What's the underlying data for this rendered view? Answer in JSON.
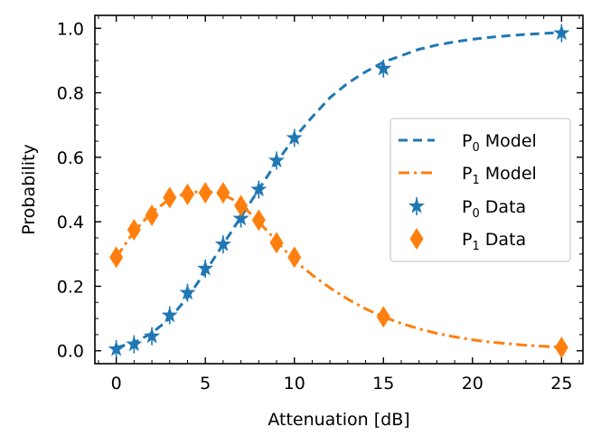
{
  "chart_data": {
    "type": "line",
    "xlabel": "Attenuation [dB]",
    "ylabel": "Probability",
    "xlim": [
      -1.2,
      26.2
    ],
    "ylim": [
      -0.04,
      1.04
    ],
    "x_ticks": [
      0,
      5,
      10,
      15,
      20,
      25
    ],
    "y_ticks": [
      0.0,
      0.2,
      0.4,
      0.6,
      0.8,
      1.0
    ],
    "x_tick_labels": [
      "0",
      "5",
      "10",
      "15",
      "20",
      "25"
    ],
    "y_tick_labels": [
      "0.0",
      "0.2",
      "0.4",
      "0.6",
      "0.8",
      "1.0"
    ],
    "minor_ticks": true,
    "grid": false,
    "legend_position": "center-right",
    "series": [
      {
        "legend_base": "P",
        "legend_sub": "0",
        "legend_rest": " Model",
        "kind": "model",
        "style": "dashed",
        "color": "#1f77b4",
        "x": [
          0,
          1,
          2,
          3,
          4,
          5,
          6,
          7,
          8,
          9,
          10,
          11,
          12,
          13,
          14,
          15,
          16,
          17,
          18,
          19,
          20,
          21,
          22,
          23,
          24,
          25
        ],
        "values": [
          0.01,
          0.025,
          0.055,
          0.1,
          0.165,
          0.245,
          0.33,
          0.415,
          0.5,
          0.585,
          0.66,
          0.725,
          0.785,
          0.83,
          0.865,
          0.895,
          0.915,
          0.935,
          0.948,
          0.958,
          0.966,
          0.972,
          0.977,
          0.981,
          0.984,
          0.987
        ]
      },
      {
        "legend_base": "P",
        "legend_sub": "1",
        "legend_rest": " Model",
        "kind": "model",
        "style": "dashdot",
        "color": "#ff7f0e",
        "x": [
          0,
          1,
          2,
          3,
          4,
          5,
          6,
          7,
          8,
          9,
          10,
          11,
          12,
          13,
          14,
          15,
          16,
          17,
          18,
          19,
          20,
          21,
          22,
          23,
          24,
          25
        ],
        "values": [
          0.29,
          0.37,
          0.43,
          0.47,
          0.49,
          0.495,
          0.485,
          0.455,
          0.4,
          0.34,
          0.28,
          0.235,
          0.195,
          0.16,
          0.13,
          0.105,
          0.085,
          0.068,
          0.054,
          0.043,
          0.034,
          0.027,
          0.022,
          0.017,
          0.014,
          0.011
        ]
      },
      {
        "legend_base": "P",
        "legend_sub": "0",
        "legend_rest": " Data",
        "kind": "data",
        "marker": "star",
        "color": "#1f77b4",
        "x": [
          0,
          1,
          2,
          3,
          4,
          5,
          6,
          7,
          8,
          9,
          10,
          15,
          25
        ],
        "values": [
          0.005,
          0.02,
          0.045,
          0.11,
          0.18,
          0.255,
          0.33,
          0.41,
          0.5,
          0.59,
          0.66,
          0.875,
          0.985
        ]
      },
      {
        "legend_base": "P",
        "legend_sub": "1",
        "legend_rest": " Data",
        "kind": "data",
        "marker": "diamond",
        "color": "#ff7f0e",
        "x": [
          0,
          1,
          2,
          3,
          4,
          5,
          6,
          7,
          8,
          9,
          10,
          15,
          25
        ],
        "values": [
          0.29,
          0.375,
          0.42,
          0.475,
          0.485,
          0.49,
          0.49,
          0.45,
          0.405,
          0.335,
          0.29,
          0.105,
          0.01
        ]
      }
    ]
  }
}
